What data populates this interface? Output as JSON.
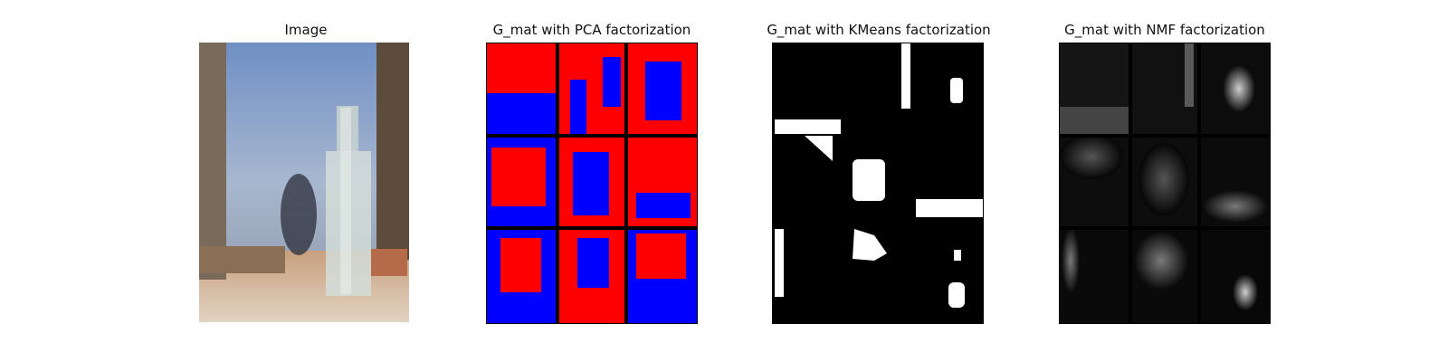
{
  "figure": {
    "panels": [
      {
        "title": "Image"
      },
      {
        "title": "G_mat with PCA factorization"
      },
      {
        "title": "G_mat with KMeans factorization"
      },
      {
        "title": "G_mat with NMF factorization"
      }
    ]
  },
  "colors": {
    "pca_positive": "#ff0000",
    "pca_negative": "#0000ff",
    "mask_on": "#ffffff",
    "mask_off": "#000000"
  }
}
